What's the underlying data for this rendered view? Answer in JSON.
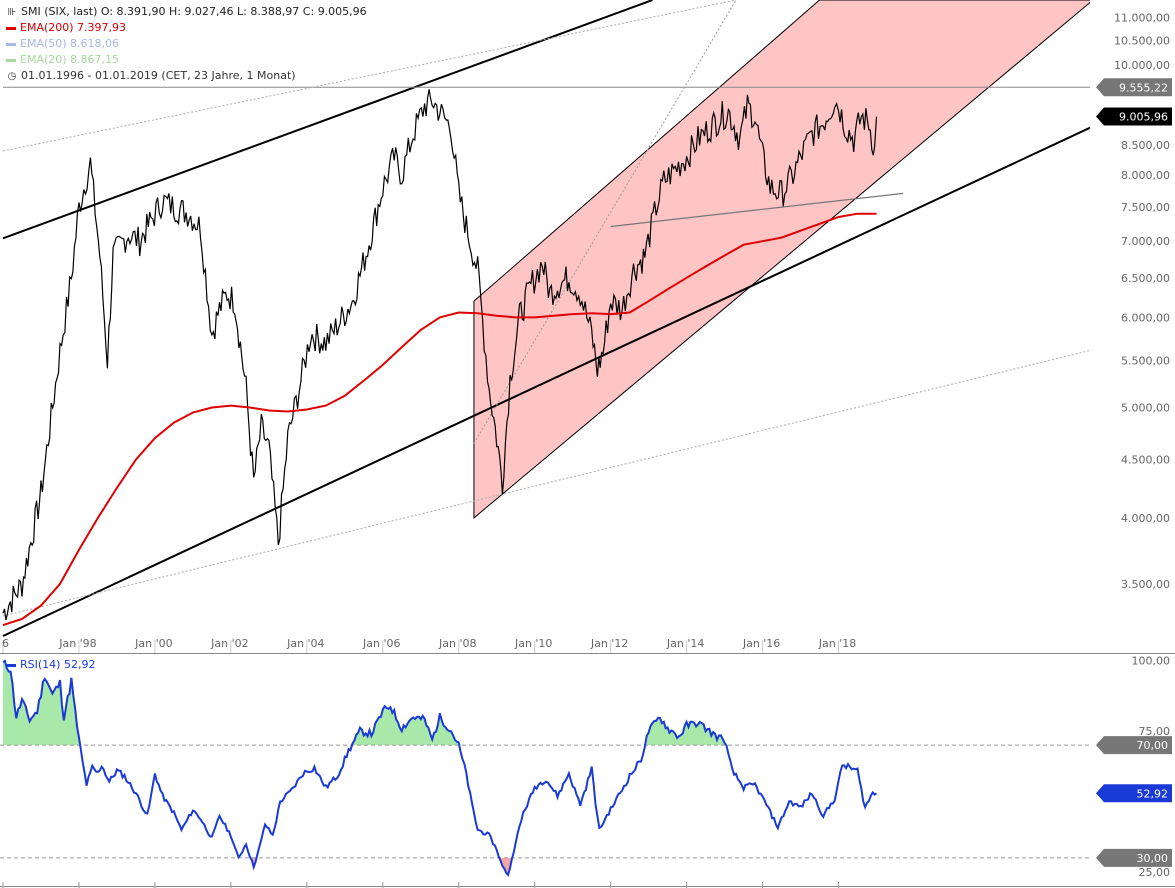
{
  "header": {
    "main_line": "SMI (SIX, last)  O: 8.391,90  H: 9.027,46  L: 8.388,97  C: 9.005,96",
    "ema200": "EMA(200)  7.397,93",
    "ema50": "EMA(50)  8.618,06",
    "ema20": "EMA(20)  8.867,15",
    "range": "01.01.1996 - 01.01.2019   (CET, 23 Jahre, 1 Monat)"
  },
  "colors": {
    "price": "#000000",
    "ema200": "#e00000",
    "ema50": "#a9b7e8",
    "ema20": "#a8d8a0",
    "channel_fill": "#ffc4c4",
    "rsi": "#1a3ad8",
    "rsi_over": "#a8e8a8",
    "rsi_under": "#f4a6a6"
  },
  "rsi_header": "RSI(14)  52,92",
  "chart_data": [
    {
      "type": "line",
      "title": "SMI (SIX, last)",
      "scale": "log",
      "ylim": [
        3150,
        11400
      ],
      "y_ticks": [
        "11.000,00",
        "10.500,00",
        "10.000,00",
        "9.500,00",
        "9.000,00",
        "8.500,00",
        "8.000,00",
        "7.500,00",
        "7.000,00",
        "6.500,00",
        "6.000,00",
        "5.500,00",
        "5.000,00",
        "4.500,00",
        "4.000,00",
        "3.500,00"
      ],
      "y_tick_values": [
        11000,
        10500,
        10000,
        9500,
        9000,
        8500,
        8000,
        7500,
        7000,
        6500,
        6000,
        5500,
        5000,
        4500,
        4000,
        3500
      ],
      "x_ticks": [
        "6",
        "Jan '98",
        "Jan '00",
        "Jan '02",
        "Jan '04",
        "Jan '06",
        "Jan '08",
        "Jan '10",
        "Jan '12",
        "Jan '14",
        "Jan '16",
        "Jan '18"
      ],
      "x_tick_years": [
        1996,
        1998,
        2000,
        2002,
        2004,
        2006,
        2008,
        2010,
        2012,
        2014,
        2016,
        2018
      ],
      "xlim": [
        1996.0,
        2024.7
      ],
      "price_labels": [
        {
          "text": "9.555,22",
          "value": 9555,
          "style": "gray"
        },
        {
          "text": "9.005,96",
          "value": 9006,
          "style": "black"
        }
      ],
      "series": [
        {
          "name": "SMI",
          "x": [
            1996.0,
            1996.5,
            1997.0,
            1997.5,
            1997.8,
            1998.0,
            1998.3,
            1998.55,
            1998.75,
            1998.9,
            1999.3,
            1999.6,
            1999.9,
            2000.2,
            2000.5,
            2000.9,
            2001.2,
            2001.5,
            2001.7,
            2001.9,
            2002.1,
            2002.4,
            2002.6,
            2002.8,
            2003.0,
            2003.25,
            2003.5,
            2003.8,
            2004.1,
            2004.5,
            2004.8,
            2005.2,
            2005.6,
            2006.0,
            2006.3,
            2006.5,
            2006.8,
            2007.1,
            2007.3,
            2007.5,
            2007.8,
            2008.0,
            2008.2,
            2008.5,
            2008.8,
            2009.0,
            2009.15,
            2009.35,
            2009.6,
            2009.9,
            2010.2,
            2010.4,
            2010.6,
            2010.9,
            2011.2,
            2011.5,
            2011.65,
            2011.8,
            2012.0,
            2012.3,
            2012.6,
            2012.9,
            2013.2,
            2013.4,
            2013.7,
            2014.0,
            2014.3,
            2014.6,
            2014.9,
            2015.1,
            2015.4,
            2015.6,
            2015.8,
            2016.0,
            2016.2,
            2016.5,
            2016.8,
            2017.0,
            2017.3,
            2017.6,
            2017.9,
            2018.0,
            2018.2,
            2018.4,
            2018.6,
            2018.8,
            2018.95,
            2019.0
          ],
          "values": [
            3300,
            3500,
            4200,
            5600,
            6500,
            7500,
            8200,
            6800,
            5500,
            6800,
            7100,
            7000,
            7300,
            7600,
            7500,
            7400,
            7200,
            5800,
            6100,
            6300,
            6200,
            5200,
            4300,
            4800,
            4600,
            3800,
            4700,
            5200,
            5800,
            5700,
            5900,
            6200,
            6900,
            7800,
            8300,
            8000,
            8700,
            9200,
            9300,
            9100,
            8800,
            7700,
            7200,
            6600,
            5200,
            4700,
            4300,
            5300,
            6000,
            6400,
            6700,
            6300,
            6400,
            6500,
            6300,
            5800,
            5400,
            5600,
            6200,
            6100,
            6600,
            6800,
            7500,
            7900,
            8100,
            8300,
            8600,
            8800,
            9000,
            9100,
            8600,
            9200,
            9000,
            8300,
            7800,
            7700,
            8000,
            8300,
            8700,
            8900,
            9300,
            9200,
            8800,
            8600,
            9000,
            8900,
            8400,
            9006
          ]
        },
        {
          "name": "EMA(200)",
          "x": [
            1996.0,
            1996.5,
            1997.0,
            1997.5,
            1998.0,
            1998.5,
            1999.0,
            1999.5,
            2000.0,
            2000.5,
            2001.0,
            2001.5,
            2002.0,
            2002.5,
            2003.0,
            2003.5,
            2004.0,
            2004.5,
            2005.0,
            2005.5,
            2006.0,
            2006.5,
            2007.0,
            2007.5,
            2008.0,
            2008.5,
            2009.0,
            2009.5,
            2010.0,
            2010.5,
            2011.0,
            2011.5,
            2012.0,
            2012.5,
            2013.0,
            2013.5,
            2014.0,
            2014.5,
            2015.0,
            2015.5,
            2016.0,
            2016.5,
            2017.0,
            2017.5,
            2018.0,
            2018.5,
            2019.0
          ],
          "values": [
            3220,
            3260,
            3350,
            3500,
            3750,
            4000,
            4250,
            4500,
            4700,
            4850,
            4950,
            5000,
            5020,
            5000,
            4970,
            4960,
            4980,
            5020,
            5120,
            5280,
            5450,
            5650,
            5850,
            6000,
            6060,
            6050,
            6020,
            6000,
            6000,
            6020,
            6040,
            6050,
            6040,
            6060,
            6200,
            6350,
            6500,
            6650,
            6800,
            6950,
            7000,
            7050,
            7150,
            7250,
            7350,
            7400,
            7398
          ]
        }
      ],
      "lines": [
        {
          "name": "upper-trendline",
          "x": [
            1996.0,
            2013.1
          ],
          "values": [
            7040,
            11400
          ]
        },
        {
          "name": "lower-trendline",
          "x": [
            1996.0,
            2024.7
          ],
          "values": [
            3150,
            8830
          ]
        },
        {
          "name": "support-line",
          "x": [
            2012.0,
            2019.7
          ],
          "values": [
            7210,
            7710
          ]
        },
        {
          "name": "resistance-line",
          "x": [
            1996.0,
            2024.7
          ],
          "values": [
            9555,
            9555
          ]
        },
        {
          "name": "dotted-upper",
          "x": [
            1996.0,
            2015.3
          ],
          "values": [
            8400,
            11400
          ]
        },
        {
          "name": "dotted-lower",
          "x": [
            1996.0,
            2024.7
          ],
          "values": [
            3280,
            5620
          ]
        }
      ],
      "channel": {
        "x": [
          2008.4,
          2017.5,
          2024.7,
          2008.4
        ],
        "values": [
          6200,
          11400,
          11400,
          4000
        ]
      }
    },
    {
      "type": "line",
      "title": "RSI(14)",
      "ylim": [
        20,
        102
      ],
      "y_ticks": [
        "100,00",
        "75,00",
        "70,00",
        "52,92",
        "30,00",
        "25,00"
      ],
      "y_tick_values": [
        100,
        75,
        70,
        52.92,
        30,
        25
      ],
      "levels": [
        70,
        30
      ],
      "series": [
        {
          "name": "RSI(14)",
          "x": [
            1996.0,
            1996.2,
            1996.35,
            1996.5,
            1996.7,
            1996.9,
            1997.1,
            1997.3,
            1997.5,
            1997.6,
            1997.8,
            1998.0,
            1998.2,
            1998.35,
            1998.5,
            1998.6,
            1998.8,
            1999.0,
            1999.2,
            1999.5,
            1999.8,
            2000.0,
            2000.2,
            2000.5,
            2000.7,
            2001.0,
            2001.2,
            2001.5,
            2001.7,
            2002.0,
            2002.2,
            2002.4,
            2002.6,
            2002.9,
            2003.1,
            2003.3,
            2003.6,
            2003.9,
            2004.2,
            2004.5,
            2004.8,
            2005.1,
            2005.4,
            2005.7,
            2006.0,
            2006.2,
            2006.5,
            2006.8,
            2007.1,
            2007.3,
            2007.5,
            2007.8,
            2008.0,
            2008.2,
            2008.5,
            2008.8,
            2009.0,
            2009.15,
            2009.3,
            2009.5,
            2009.7,
            2010.0,
            2010.3,
            2010.6,
            2010.9,
            2011.2,
            2011.5,
            2011.7,
            2011.9,
            2012.2,
            2012.5,
            2012.8,
            2013.0,
            2013.3,
            2013.5,
            2013.8,
            2014.0,
            2014.3,
            2014.5,
            2014.8,
            2015.0,
            2015.2,
            2015.5,
            2015.8,
            2016.1,
            2016.4,
            2016.7,
            2017.0,
            2017.3,
            2017.6,
            2017.9,
            2018.1,
            2018.3,
            2018.5,
            2018.7,
            2018.9,
            2019.0
          ],
          "values": [
            99,
            97,
            80,
            86,
            79,
            82,
            95,
            88,
            92,
            80,
            93,
            72,
            56,
            62,
            60,
            63,
            57,
            61,
            59,
            53,
            45,
            60,
            52,
            46,
            40,
            47,
            44,
            37,
            45,
            38,
            30,
            35,
            27,
            42,
            38,
            50,
            54,
            60,
            62,
            55,
            59,
            68,
            75,
            74,
            82,
            84,
            76,
            80,
            79,
            72,
            80,
            75,
            70,
            60,
            40,
            38,
            33,
            27,
            24,
            36,
            46,
            55,
            58,
            52,
            60,
            49,
            62,
            40,
            45,
            52,
            59,
            65,
            75,
            80,
            76,
            73,
            77,
            78,
            76,
            73,
            72,
            61,
            55,
            56,
            49,
            41,
            50,
            48,
            53,
            45,
            51,
            63,
            62,
            61,
            48,
            53,
            52.92
          ]
        }
      ]
    }
  ]
}
